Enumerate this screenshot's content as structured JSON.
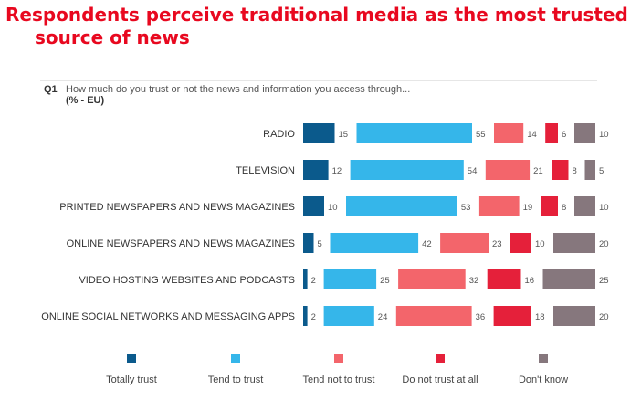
{
  "title_line1": "Respondents perceive traditional media as the most trusted",
  "title_line2": "source of news",
  "question_label": "Q1",
  "question_text": "How much do you trust or not the news and information you access through...",
  "question_sub": "(% - EU)",
  "chart_data": {
    "type": "bar",
    "orientation": "horizontal-grouped",
    "categories": [
      "RADIO",
      "TELEVISION",
      "PRINTED NEWSPAPERS AND NEWS MAGAZINES",
      "ONLINE NEWSPAPERS AND NEWS MAGAZINES",
      "VIDEO HOSTING WEBSITES AND PODCASTS",
      "ONLINE SOCIAL NETWORKS AND MESSAGING APPS"
    ],
    "series": [
      {
        "name": "Totally trust",
        "color": "#0b5a8c",
        "values": [
          15,
          12,
          10,
          5,
          2,
          2
        ]
      },
      {
        "name": "Tend to trust",
        "color": "#35b6ea",
        "values": [
          55,
          54,
          53,
          42,
          25,
          24
        ]
      },
      {
        "name": "Tend not to trust",
        "color": "#f3656b",
        "values": [
          14,
          21,
          19,
          23,
          32,
          36
        ]
      },
      {
        "name": "Do not trust at all",
        "color": "#e5203a",
        "values": [
          6,
          8,
          8,
          10,
          16,
          18
        ]
      },
      {
        "name": "Don't know",
        "color": "#86777d",
        "values": [
          10,
          5,
          10,
          20,
          25,
          20
        ]
      }
    ],
    "xlim": [
      0,
      100
    ],
    "legend_position": "bottom",
    "grid": false
  }
}
